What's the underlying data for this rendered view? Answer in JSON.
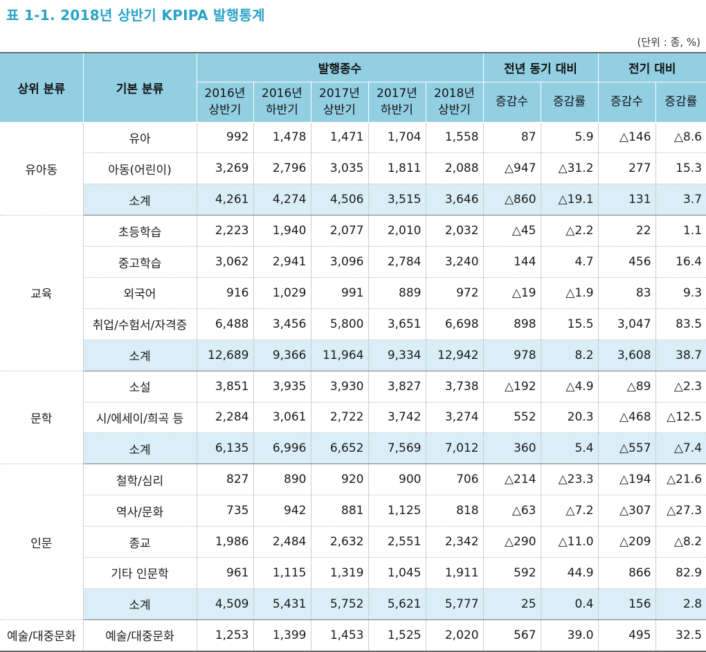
{
  "title": "표 1-1. 2018년 상반기 KPIPA 발행통계",
  "unit": "(단위 : 종, %)",
  "header": {
    "top_category": "상위 분류",
    "base_category": "기본 분류",
    "group_titles": [
      "발행종수",
      "전년 동기 대비",
      "전기 대비"
    ],
    "period_cols": [
      {
        "year": "2016년",
        "half": "상반기"
      },
      {
        "year": "2016년",
        "half": "하반기"
      },
      {
        "year": "2017년",
        "half": "상반기"
      },
      {
        "year": "2017년",
        "half": "하반기"
      },
      {
        "year": "2018년",
        "half": "상반기"
      }
    ],
    "change_cols": [
      "증감수",
      "증감률",
      "증감수",
      "증감률"
    ]
  },
  "groups": [
    {
      "name": "유아동",
      "rows": [
        {
          "label": "유아",
          "subtotal": false,
          "values": [
            "992",
            "1,478",
            "1,471",
            "1,704",
            "1,558",
            "87",
            "5.9",
            "△146",
            "△8.6"
          ]
        },
        {
          "label": "아동(어린이)",
          "subtotal": false,
          "values": [
            "3,269",
            "2,796",
            "3,035",
            "1,811",
            "2,088",
            "△947",
            "△31.2",
            "277",
            "15.3"
          ]
        },
        {
          "label": "소계",
          "subtotal": true,
          "values": [
            "4,261",
            "4,274",
            "4,506",
            "3,515",
            "3,646",
            "△860",
            "△19.1",
            "131",
            "3.7"
          ]
        }
      ]
    },
    {
      "name": "교육",
      "rows": [
        {
          "label": "초등학습",
          "subtotal": false,
          "values": [
            "2,223",
            "1,940",
            "2,077",
            "2,010",
            "2,032",
            "△45",
            "△2.2",
            "22",
            "1.1"
          ]
        },
        {
          "label": "중고학습",
          "subtotal": false,
          "values": [
            "3,062",
            "2,941",
            "3,096",
            "2,784",
            "3,240",
            "144",
            "4.7",
            "456",
            "16.4"
          ]
        },
        {
          "label": "외국어",
          "subtotal": false,
          "values": [
            "916",
            "1,029",
            "991",
            "889",
            "972",
            "△19",
            "△1.9",
            "83",
            "9.3"
          ]
        },
        {
          "label": "취업/수험서/자격증",
          "subtotal": false,
          "values": [
            "6,488",
            "3,456",
            "5,800",
            "3,651",
            "6,698",
            "898",
            "15.5",
            "3,047",
            "83.5"
          ]
        },
        {
          "label": "소계",
          "subtotal": true,
          "values": [
            "12,689",
            "9,366",
            "11,964",
            "9,334",
            "12,942",
            "978",
            "8.2",
            "3,608",
            "38.7"
          ]
        }
      ]
    },
    {
      "name": "문학",
      "rows": [
        {
          "label": "소설",
          "subtotal": false,
          "values": [
            "3,851",
            "3,935",
            "3,930",
            "3,827",
            "3,738",
            "△192",
            "△4.9",
            "△89",
            "△2.3"
          ]
        },
        {
          "label": "시/에세이/희곡 등",
          "subtotal": false,
          "values": [
            "2,284",
            "3,061",
            "2,722",
            "3,742",
            "3,274",
            "552",
            "20.3",
            "△468",
            "△12.5"
          ]
        },
        {
          "label": "소계",
          "subtotal": true,
          "values": [
            "6,135",
            "6,996",
            "6,652",
            "7,569",
            "7,012",
            "360",
            "5.4",
            "△557",
            "△7.4"
          ]
        }
      ]
    },
    {
      "name": "인문",
      "rows": [
        {
          "label": "철학/심리",
          "subtotal": false,
          "values": [
            "827",
            "890",
            "920",
            "900",
            "706",
            "△214",
            "△23.3",
            "△194",
            "△21.6"
          ]
        },
        {
          "label": "역사/문화",
          "subtotal": false,
          "values": [
            "735",
            "942",
            "881",
            "1,125",
            "818",
            "△63",
            "△7.2",
            "△307",
            "△27.3"
          ]
        },
        {
          "label": "종교",
          "subtotal": false,
          "values": [
            "1,986",
            "2,484",
            "2,632",
            "2,551",
            "2,342",
            "△290",
            "△11.0",
            "△209",
            "△8.2"
          ]
        },
        {
          "label": "기타 인문학",
          "subtotal": false,
          "values": [
            "961",
            "1,115",
            "1,319",
            "1,045",
            "1,911",
            "592",
            "44.9",
            "866",
            "82.9"
          ]
        },
        {
          "label": "소계",
          "subtotal": true,
          "values": [
            "4,509",
            "5,431",
            "5,752",
            "5,621",
            "5,777",
            "25",
            "0.4",
            "156",
            "2.8"
          ]
        }
      ]
    },
    {
      "name": "예술/대중문화",
      "rows": [
        {
          "label": "예술/대중문화",
          "subtotal": false,
          "values": [
            "1,253",
            "1,399",
            "1,453",
            "1,525",
            "2,020",
            "567",
            "39.0",
            "495",
            "32.5"
          ]
        }
      ]
    }
  ]
}
